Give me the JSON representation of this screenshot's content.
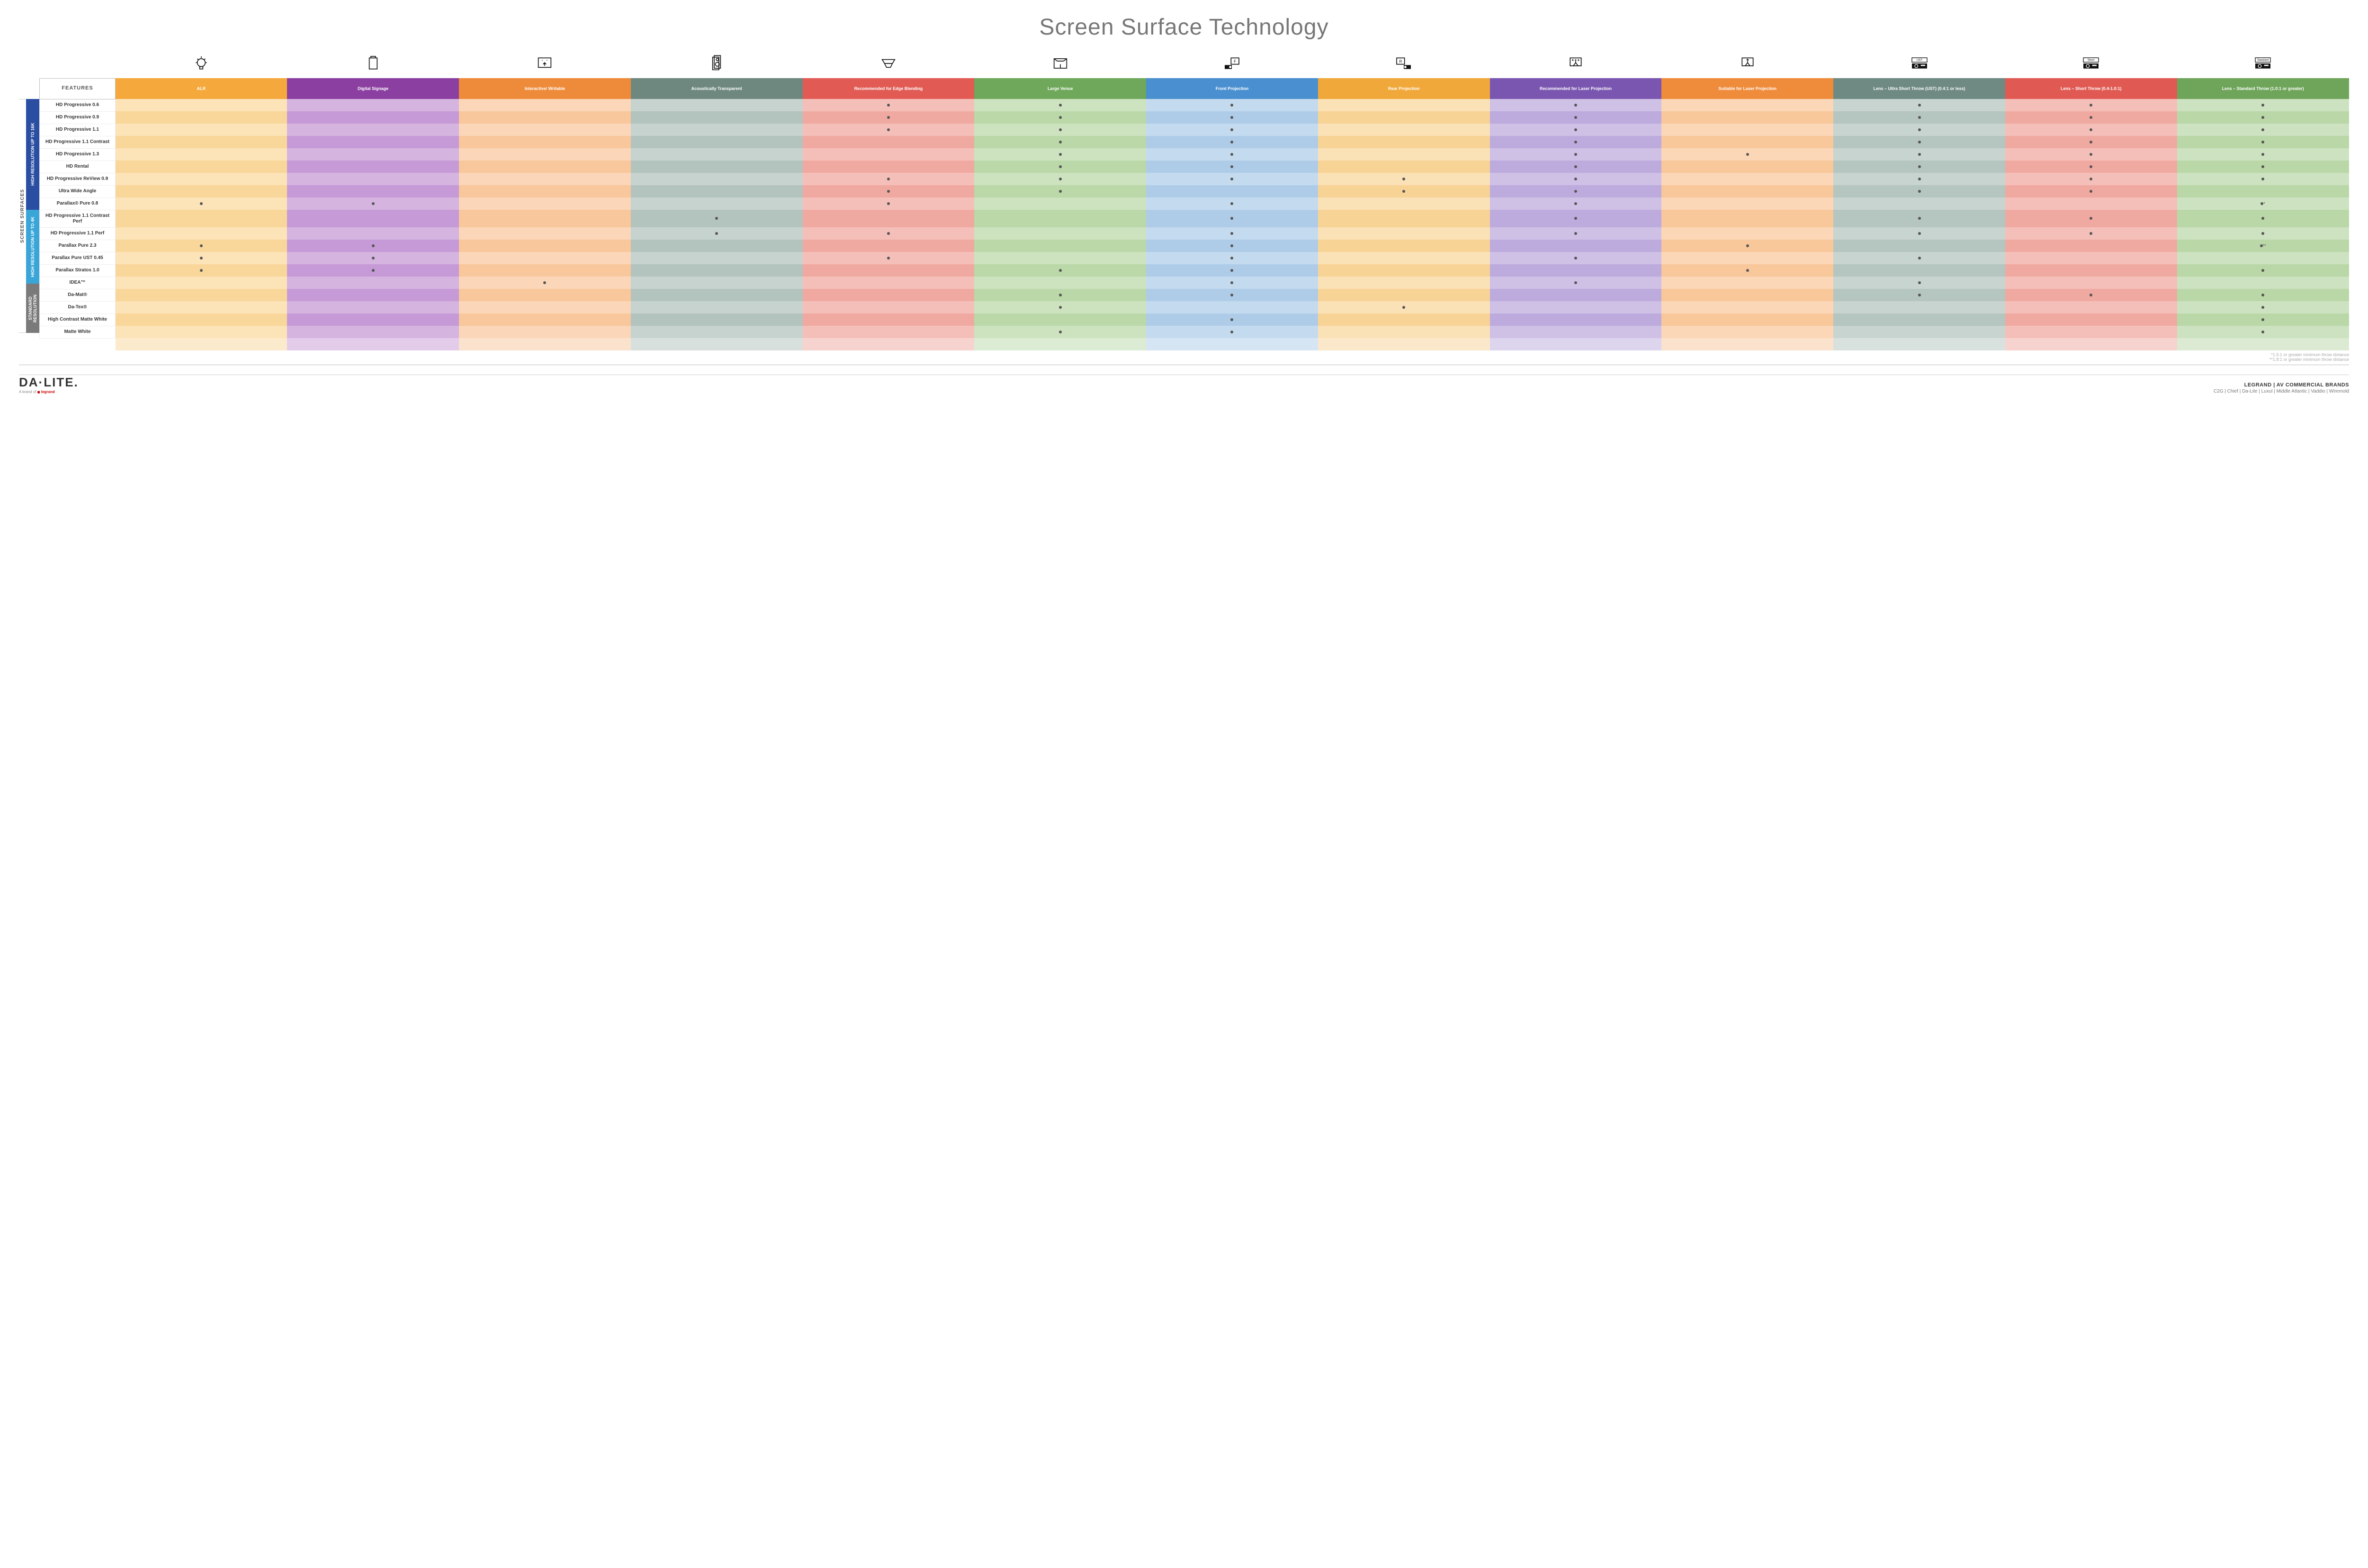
{
  "title": "Screen Surface Technology",
  "features_header": "FEATURES",
  "columns": [
    {
      "id": "alr",
      "label": "ALR",
      "color": "#f5a83c",
      "icon": "bulb"
    },
    {
      "id": "signage",
      "label": "Digital Signage",
      "color": "#8b3fa0",
      "icon": "screen"
    },
    {
      "id": "interactive",
      "label": "Interactive/ Writable",
      "color": "#ee8b3a",
      "icon": "touch"
    },
    {
      "id": "acoustic",
      "label": "Acoustically Transparent",
      "color": "#6e8880",
      "icon": "speaker"
    },
    {
      "id": "edge",
      "label": "Recommended for Edge Blending",
      "color": "#e15b54",
      "icon": "blend"
    },
    {
      "id": "large",
      "label": "Large Venue",
      "color": "#6fa85a",
      "icon": "venue"
    },
    {
      "id": "front",
      "label": "Front Projection",
      "color": "#4a8fcf",
      "icon": "front"
    },
    {
      "id": "rear",
      "label": "Rear Projection",
      "color": "#f0a83a",
      "icon": "rear"
    },
    {
      "id": "reclaser",
      "label": "Recommended for Laser Projection",
      "color": "#7a56b0",
      "icon": "laser3"
    },
    {
      "id": "suitlaser",
      "label": "Suitable for Laser Projection",
      "color": "#ef8c3c",
      "icon": "laser1"
    },
    {
      "id": "ust",
      "label": "Lens – Ultra Short Throw (UST) (0.4:1 or less)",
      "color": "#6f8a82",
      "icon": "ust"
    },
    {
      "id": "short",
      "label": "Lens – Short Throw (0.4-1.0:1)",
      "color": "#e05a53",
      "icon": "short"
    },
    {
      "id": "std",
      "label": "Lens – Standard Throw (1.0:1 or greater)",
      "color": "#6fa55a",
      "icon": "standard"
    }
  ],
  "column_tints": {
    "alr": [
      "#fce3b8",
      "#f9d79a"
    ],
    "signage": [
      "#d5b4e0",
      "#c69ad6"
    ],
    "interactive": [
      "#fbd6b8",
      "#f8c79c"
    ],
    "acoustic": [
      "#c7d3cf",
      "#b3c3be"
    ],
    "edge": [
      "#f5bfb9",
      "#f0a9a1"
    ],
    "large": [
      "#cde3c0",
      "#bad8a8"
    ],
    "front": [
      "#c4dbef",
      "#aecce8"
    ],
    "rear": [
      "#fbe1b6",
      "#f8d396"
    ],
    "reclaser": [
      "#cfc0e6",
      "#bdabdd"
    ],
    "suitlaser": [
      "#fbd7b8",
      "#f8c79a"
    ],
    "ust": [
      "#c8d4d0",
      "#b5c5c0"
    ],
    "short": [
      "#f5bfb9",
      "#f0a9a1"
    ],
    "std": [
      "#cde2c0",
      "#bad7a8"
    ]
  },
  "side_label": "SCREEN SURFACES",
  "groups": [
    {
      "id": "g16k",
      "label": "HIGH RESOLUTION UP TO 16K",
      "color": "#2a4ea2",
      "rows": 9
    },
    {
      "id": "g4k",
      "label": "HIGH RESOLUTION UP TO 4K",
      "color": "#3aa6d8",
      "rows": 6
    },
    {
      "id": "gstd",
      "label": "STANDARD RESOLUTION",
      "color": "#7a7a7a",
      "rows": 4
    }
  ],
  "rows": [
    {
      "label": "HD Progressive 0.6",
      "dots": {
        "edge": "•",
        "large": "•",
        "front": "•",
        "reclaser": "•",
        "ust": "•",
        "short": "•",
        "std": "•"
      }
    },
    {
      "label": "HD Progressive 0.9",
      "dots": {
        "edge": "•",
        "large": "•",
        "front": "•",
        "reclaser": "•",
        "ust": "•",
        "short": "•",
        "std": "•"
      }
    },
    {
      "label": "HD Progressive 1.1",
      "dots": {
        "edge": "•",
        "large": "•",
        "front": "•",
        "reclaser": "•",
        "ust": "•",
        "short": "•",
        "std": "•"
      }
    },
    {
      "label": "HD Progressive 1.1 Contrast",
      "dots": {
        "large": "•",
        "front": "•",
        "reclaser": "•",
        "ust": "•",
        "short": "•",
        "std": "•"
      }
    },
    {
      "label": "HD Progressive 1.3",
      "dots": {
        "large": "•",
        "front": "•",
        "reclaser": "•",
        "suitlaser": "•",
        "ust": "•",
        "short": "•",
        "std": "•"
      }
    },
    {
      "label": "HD Rental",
      "dots": {
        "large": "•",
        "front": "•",
        "reclaser": "•",
        "ust": "•",
        "short": "•",
        "std": "•"
      }
    },
    {
      "label": "HD Progressive ReView 0.9",
      "dots": {
        "edge": "•",
        "large": "•",
        "front": "•",
        "rear": "•",
        "reclaser": "•",
        "ust": "•",
        "short": "•",
        "std": "•"
      }
    },
    {
      "label": "Ultra Wide Angle",
      "dots": {
        "edge": "•",
        "large": "•",
        "rear": "•",
        "reclaser": "•",
        "ust": "•",
        "short": "•"
      }
    },
    {
      "label": "Parallax® Pure 0.8",
      "dots": {
        "alr": "•",
        "signage": "•",
        "edge": "•",
        "front": "•",
        "reclaser": "•",
        "std": "•*"
      }
    },
    {
      "label": "HD Progressive 1.1 Contrast Perf",
      "dots": {
        "acoustic": "•",
        "front": "•",
        "reclaser": "•",
        "ust": "•",
        "short": "•",
        "std": "•"
      }
    },
    {
      "label": "HD Progressive 1.1 Perf",
      "dots": {
        "acoustic": "•",
        "edge": "•",
        "front": "•",
        "reclaser": "•",
        "ust": "•",
        "short": "•",
        "std": "•"
      }
    },
    {
      "label": "Parallax Pure 2.3",
      "dots": {
        "alr": "•",
        "signage": "•",
        "front": "•",
        "suitlaser": "•",
        "std": "•**"
      }
    },
    {
      "label": "Parallax Pure UST 0.45",
      "dots": {
        "alr": "•",
        "signage": "•",
        "edge": "•",
        "front": "•",
        "reclaser": "•",
        "ust": "•"
      }
    },
    {
      "label": "Parallax Stratos 1.0",
      "dots": {
        "alr": "•",
        "signage": "•",
        "large": "•",
        "front": "•",
        "suitlaser": "•",
        "std": "•"
      }
    },
    {
      "label": "IDEA™",
      "dots": {
        "interactive": "•",
        "front": "•",
        "reclaser": "•",
        "ust": "•"
      }
    },
    {
      "label": "Da-Mat®",
      "dots": {
        "large": "•",
        "front": "•",
        "ust": "•",
        "short": "•",
        "std": "•"
      }
    },
    {
      "label": "Da-Tex®",
      "dots": {
        "large": "•",
        "rear": "•",
        "std": "•"
      }
    },
    {
      "label": "High Contrast Matte White",
      "dots": {
        "front": "•",
        "std": "•"
      }
    },
    {
      "label": "Matte White",
      "dots": {
        "large": "•",
        "front": "•",
        "std": "•"
      }
    }
  ],
  "footnotes": [
    "*1.5:1 or greater minimum throw distance",
    "**1.8:1 or greater minimum throw distance"
  ],
  "footer": {
    "logo": "DA·LITE.",
    "logo_sub_prefix": "A brand of ",
    "logo_sub_brand": "legrand",
    "brands_title": "LEGRAND | AV COMMERCIAL BRANDS",
    "brands": [
      "C2G",
      "Chief",
      "Da-Lite",
      "Luxul",
      "Middle Atlantic",
      "Vaddio",
      "Wiremold"
    ]
  }
}
